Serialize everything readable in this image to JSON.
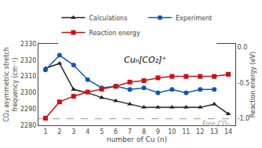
{
  "chart_data": {
    "type": "line",
    "xlabel": "number of Cu (n)",
    "ylabel": "CO₂ asymmetric stretch\nfrequency (cm⁻¹)",
    "y2label": "Reaction energy (eV)",
    "xlim": [
      0.5,
      14.5
    ],
    "xticks": [
      1,
      2,
      3,
      4,
      5,
      6,
      7,
      8,
      9,
      10,
      11,
      12,
      13,
      14
    ],
    "ylim": [
      2280,
      2330
    ],
    "yticks": [
      2280,
      2290,
      2300,
      2310,
      2320,
      2330
    ],
    "y2lim": [
      -1.1,
      0.05
    ],
    "y2ticks": [
      {
        "value": 0.0,
        "label": "0.0"
      },
      -0.5,
      {
        "value": -1.0,
        "label": "-1.0"
      }
    ],
    "grid": false,
    "legend": "top",
    "series": [
      {
        "name": "Calculations",
        "color": "#222222",
        "marker": "triangle",
        "line_style": "solid",
        "x": [
          1,
          2,
          3,
          4,
          5,
          6,
          7,
          8,
          9,
          10,
          11,
          12,
          13,
          14
        ],
        "values": [
          2315,
          2318,
          2302,
          2300,
          2297,
          2295,
          2293,
          2291,
          2291,
          2291,
          2291,
          2291,
          2293,
          2287
        ]
      },
      {
        "name": "Experiment",
        "color": "#1155bb",
        "marker": "circle",
        "line_style": "solid",
        "x": [
          1,
          2,
          3,
          4,
          5,
          6,
          7,
          8,
          9,
          10,
          11,
          12,
          13
        ],
        "values": [
          2314,
          2323,
          2317,
          2308,
          2303,
          2304,
          2302,
          2303,
          2300,
          2302,
          2300,
          2302,
          2302
        ]
      },
      {
        "name": "Reaction energy",
        "color": "#cc1111",
        "marker": "square",
        "line_style": "solid",
        "axis": "y2",
        "x": [
          1,
          2,
          3,
          4,
          5,
          6,
          7,
          8,
          9,
          10,
          11,
          12,
          13,
          14
        ],
        "values": [
          -1.0,
          -0.77,
          -0.69,
          -0.63,
          -0.59,
          -0.55,
          -0.49,
          -0.47,
          -0.43,
          -0.41,
          -0.41,
          -0.41,
          -0.41,
          -0.38
        ]
      }
    ],
    "reference_lines": [
      {
        "y": 2284,
        "label": "Free CO₂",
        "color": "#999999",
        "line_style": "dashed"
      }
    ],
    "annotations": [
      {
        "text": "Cuₙ[CO₂]⁺"
      }
    ]
  }
}
